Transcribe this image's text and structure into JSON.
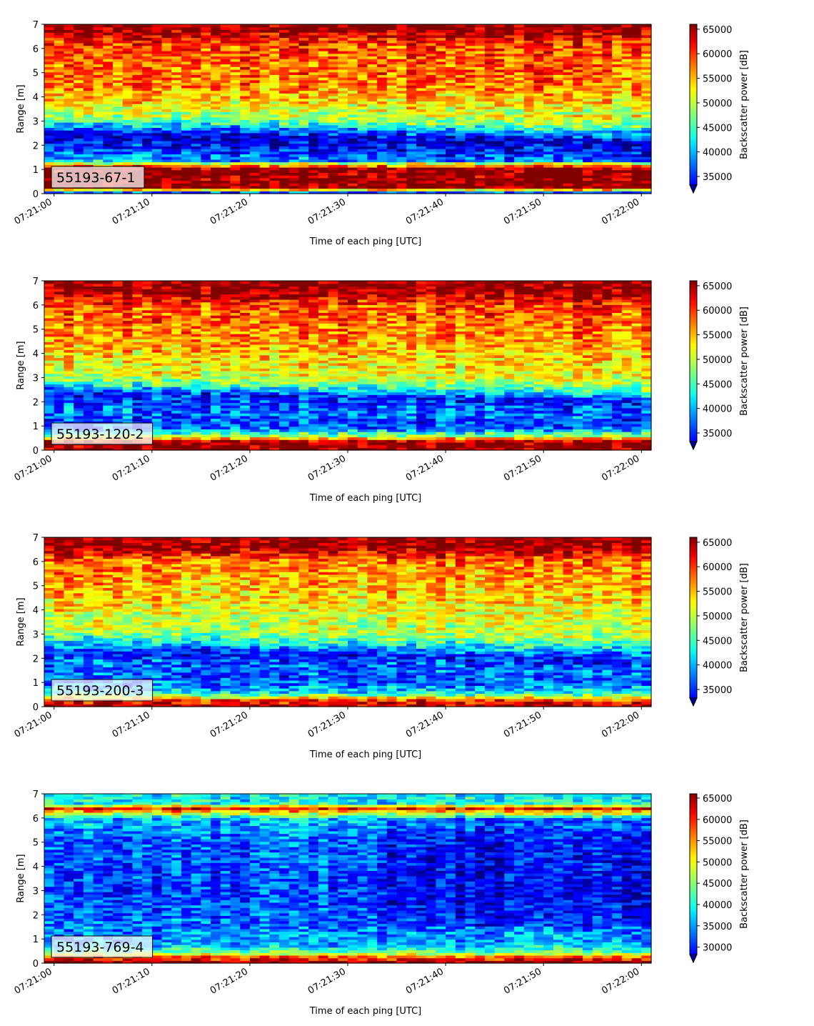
{
  "chart_data": [
    {
      "type": "heatmap",
      "panel_label": "55193-67-1",
      "xlabel": "Time of each ping [UTC]",
      "ylabel": "Range [m]",
      "x_ticks": [
        "07:21:00",
        "07:21:10",
        "07:21:20",
        "07:21:30",
        "07:21:40",
        "07:21:50",
        "07:22:00"
      ],
      "y_ticks": [
        0,
        1,
        2,
        3,
        4,
        5,
        6,
        7
      ],
      "ylim": [
        0,
        7
      ],
      "xlim_seconds": [
        -1,
        61
      ],
      "colorbar": {
        "label": "Backscatter power [dB]",
        "range": [
          32000,
          66000
        ],
        "ticks": [
          35000,
          40000,
          45000,
          50000,
          55000,
          60000,
          65000
        ],
        "extend": "min"
      },
      "band_profile": [
        [
          0.0,
          32000
        ],
        [
          0.25,
          66000
        ],
        [
          1.05,
          66000
        ],
        [
          1.2,
          55000
        ],
        [
          1.45,
          41000
        ],
        [
          1.65,
          40000
        ],
        [
          1.9,
          37500
        ],
        [
          2.45,
          34000
        ],
        [
          2.8,
          41000
        ],
        [
          3.1,
          48000
        ],
        [
          3.5,
          53000
        ],
        [
          4.5,
          58000
        ],
        [
          6.2,
          60000
        ],
        [
          6.8,
          66000
        ],
        [
          7.0,
          66000
        ]
      ]
    },
    {
      "type": "heatmap",
      "panel_label": "55193-120-2",
      "xlabel": "Time of each ping [UTC]",
      "ylabel": "Range [m]",
      "x_ticks": [
        "07:21:00",
        "07:21:10",
        "07:21:20",
        "07:21:30",
        "07:21:40",
        "07:21:50",
        "07:22:00"
      ],
      "y_ticks": [
        0,
        1,
        2,
        3,
        4,
        5,
        6,
        7
      ],
      "ylim": [
        0,
        7
      ],
      "xlim_seconds": [
        -1,
        61
      ],
      "colorbar": {
        "label": "Backscatter power [dB]",
        "range": [
          32000,
          66000
        ],
        "ticks": [
          35000,
          40000,
          45000,
          50000,
          55000,
          60000,
          65000
        ],
        "extend": "min"
      },
      "band_profile": [
        [
          0.0,
          66000
        ],
        [
          0.35,
          66000
        ],
        [
          0.6,
          50000
        ],
        [
          0.9,
          40000
        ],
        [
          1.2,
          38000
        ],
        [
          1.6,
          40000
        ],
        [
          2.0,
          39000
        ],
        [
          2.4,
          37000
        ],
        [
          2.8,
          47000
        ],
        [
          3.2,
          53000
        ],
        [
          4.5,
          57000
        ],
        [
          6.0,
          60000
        ],
        [
          6.6,
          66000
        ],
        [
          7.0,
          66000
        ]
      ]
    },
    {
      "type": "heatmap",
      "panel_label": "55193-200-3",
      "xlabel": "Time of each ping [UTC]",
      "ylabel": "Range [m]",
      "x_ticks": [
        "07:21:00",
        "07:21:10",
        "07:21:20",
        "07:21:30",
        "07:21:40",
        "07:21:50",
        "07:22:00"
      ],
      "y_ticks": [
        0,
        1,
        2,
        3,
        4,
        5,
        6,
        7
      ],
      "ylim": [
        0,
        7
      ],
      "xlim_seconds": [
        -1,
        61
      ],
      "colorbar": {
        "label": "Backscatter power [dB]",
        "range": [
          32000,
          66000
        ],
        "ticks": [
          35000,
          40000,
          45000,
          50000,
          55000,
          60000,
          65000
        ],
        "extend": "min"
      },
      "band_profile": [
        [
          0.0,
          66000
        ],
        [
          0.3,
          60000
        ],
        [
          0.55,
          45000
        ],
        [
          0.9,
          40000
        ],
        [
          1.3,
          39000
        ],
        [
          1.8,
          40000
        ],
        [
          2.3,
          37000
        ],
        [
          2.8,
          45000
        ],
        [
          3.2,
          51000
        ],
        [
          4.5,
          55000
        ],
        [
          6.0,
          58000
        ],
        [
          6.6,
          66000
        ],
        [
          7.0,
          66000
        ]
      ]
    },
    {
      "type": "heatmap",
      "panel_label": "55193-769-4",
      "xlabel": "Time of each ping [UTC]",
      "ylabel": "Range [m]",
      "x_ticks": [
        "07:21:00",
        "07:21:10",
        "07:21:20",
        "07:21:30",
        "07:21:40",
        "07:21:50",
        "07:22:00"
      ],
      "y_ticks": [
        0,
        1,
        2,
        3,
        4,
        5,
        6,
        7
      ],
      "ylim": [
        0,
        7
      ],
      "xlim_seconds": [
        -1,
        61
      ],
      "colorbar": {
        "label": "Backscatter power [dB]",
        "range": [
          28000,
          66000
        ],
        "ticks": [
          30000,
          35000,
          40000,
          45000,
          50000,
          55000,
          60000,
          65000
        ],
        "extend": "min"
      },
      "band_profile": [
        [
          0.0,
          66000
        ],
        [
          0.25,
          60000
        ],
        [
          0.45,
          46000
        ],
        [
          0.8,
          39000
        ],
        [
          1.5,
          37000
        ],
        [
          3.0,
          35000
        ],
        [
          5.0,
          36000
        ],
        [
          6.0,
          40000
        ],
        [
          6.4,
          62000
        ],
        [
          6.6,
          42000
        ],
        [
          7.0,
          42000
        ]
      ]
    }
  ]
}
